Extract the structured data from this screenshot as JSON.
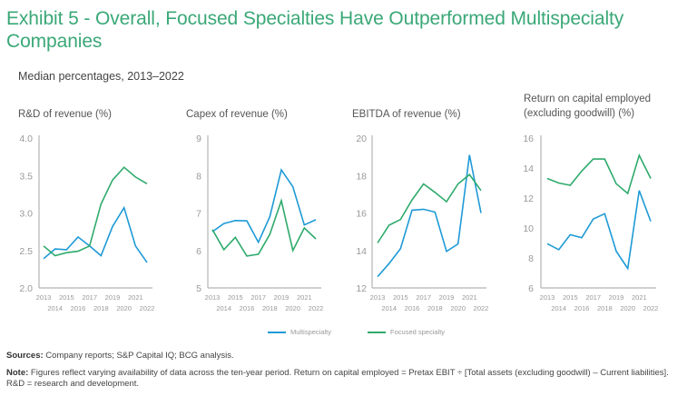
{
  "header": {
    "title": "Exhibit 5 - Overall, Focused Specialties Have Outperformed Multispecialty Companies",
    "subtitle": "Median percentages, 2013–2022"
  },
  "colors": {
    "title": "#3aa877",
    "multispecialty": "#1e9ad6",
    "focused": "#2eaa6c",
    "axis": "#999999"
  },
  "legend": [
    {
      "name": "Multispecialty",
      "color": "#1e9ad6"
    },
    {
      "name": "Focused specialty",
      "color": "#2eaa6c"
    }
  ],
  "footer": {
    "sources_label": "Sources:",
    "sources_text": " Company reports; S&P Capital IQ; BCG analysis.",
    "note_label": "Note:",
    "note_text": " Figures reflect varying availability of data across the ten-year period. Return on capital employed = Pretax EBIT ÷ [Total assets (excluding goodwill) – Current liabilities]. R&D = research and development."
  },
  "chart_data": [
    {
      "type": "line",
      "title": "R&D of revenue (%)",
      "x": [
        "2013",
        "2014",
        "2015",
        "2016",
        "2017",
        "2018",
        "2019",
        "2020",
        "2021",
        "2022"
      ],
      "yticks": [
        "2.0",
        "2.5",
        "3.0",
        "3.5",
        "4.0"
      ],
      "ylim": [
        2.0,
        4.0
      ],
      "xlabel": "",
      "ylabel": "",
      "grid": false,
      "series": [
        {
          "name": "Multispecialty",
          "values": [
            2.39,
            2.52,
            2.51,
            2.68,
            2.56,
            2.43,
            2.82,
            3.07,
            2.56,
            2.34
          ]
        },
        {
          "name": "Focused specialty",
          "values": [
            2.56,
            2.43,
            2.47,
            2.49,
            2.56,
            3.12,
            3.44,
            3.61,
            3.48,
            3.39
          ]
        }
      ]
    },
    {
      "type": "line",
      "title": "Capex of revenue (%)",
      "x": [
        "2013",
        "2014",
        "2015",
        "2016",
        "2017",
        "2018",
        "2019",
        "2020",
        "2021",
        "2022"
      ],
      "yticks": [
        "5",
        "6",
        "7",
        "8",
        "9"
      ],
      "ylim": [
        5,
        9
      ],
      "xlabel": "",
      "ylabel": "",
      "grid": false,
      "series": [
        {
          "name": "Multispecialty",
          "values": [
            6.5,
            6.72,
            6.8,
            6.79,
            6.22,
            6.9,
            8.15,
            7.7,
            6.68,
            6.82
          ]
        },
        {
          "name": "Focused specialty",
          "values": [
            6.56,
            6.02,
            6.35,
            5.85,
            5.9,
            6.43,
            7.33,
            6.0,
            6.6,
            6.31
          ]
        }
      ]
    },
    {
      "type": "line",
      "title": "EBITDA of revenue (%)",
      "x": [
        "2013",
        "2014",
        "2015",
        "2016",
        "2017",
        "2018",
        "2019",
        "2020",
        "2021",
        "2022"
      ],
      "yticks": [
        "12",
        "14",
        "16",
        "18",
        "20"
      ],
      "ylim": [
        12,
        20
      ],
      "xlabel": "",
      "ylabel": "",
      "grid": false,
      "series": [
        {
          "name": "Multispecialty",
          "values": [
            12.6,
            13.3,
            14.1,
            16.15,
            16.2,
            16.05,
            13.95,
            14.35,
            19.1,
            16.0
          ]
        },
        {
          "name": "Focused specialty",
          "values": [
            14.4,
            15.35,
            15.65,
            16.7,
            17.55,
            17.1,
            16.6,
            17.55,
            18.05,
            17.2
          ]
        }
      ]
    },
    {
      "type": "line",
      "title": "Return on capital employed (excluding goodwill) (%)",
      "title_lines": [
        "Return on capital employed",
        "(excluding goodwill) (%)"
      ],
      "x": [
        "2013",
        "2014",
        "2015",
        "2016",
        "2017",
        "2018",
        "2019",
        "2020",
        "2021",
        "2022"
      ],
      "yticks": [
        "6",
        "8",
        "10",
        "12",
        "14",
        "16"
      ],
      "ylim": [
        6,
        16
      ],
      "xlabel": "",
      "ylabel": "",
      "grid": false,
      "series": [
        {
          "name": "Multispecialty",
          "values": [
            8.95,
            8.55,
            9.55,
            9.35,
            10.6,
            10.95,
            8.45,
            7.3,
            12.5,
            10.45
          ]
        },
        {
          "name": "Focused specialty",
          "values": [
            13.3,
            13.0,
            12.85,
            13.8,
            14.6,
            14.6,
            12.95,
            12.3,
            14.85,
            13.3
          ]
        }
      ]
    }
  ]
}
